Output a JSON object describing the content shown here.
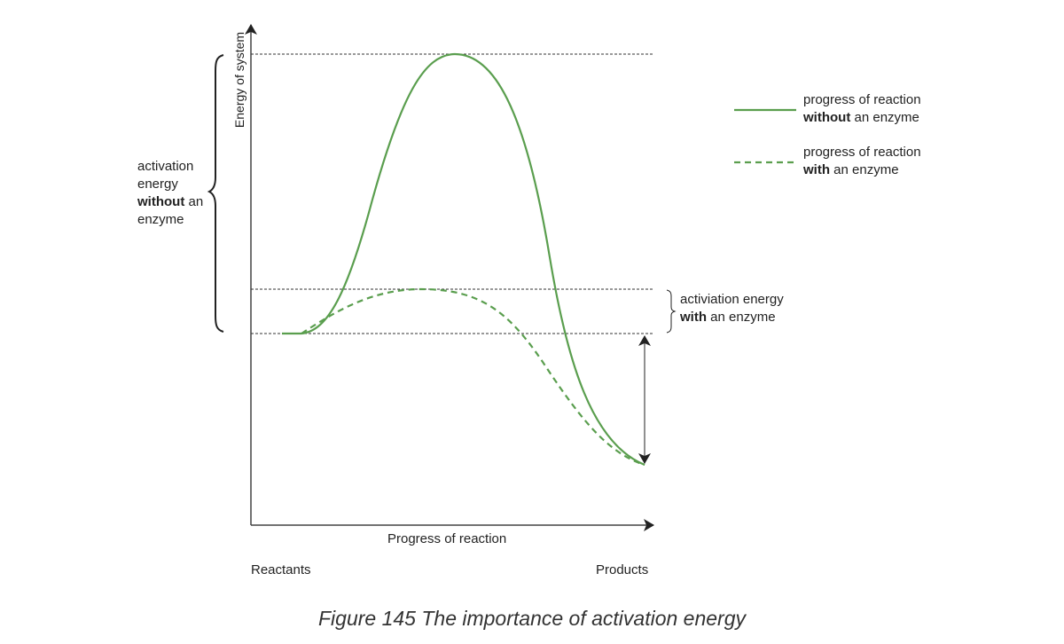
{
  "diagram": {
    "y_axis_label": "Energy of system",
    "x_axis_label": "Progress of reaction",
    "start_label": "Reactants",
    "end_label": "Products",
    "left_annotation": {
      "line1": "activation",
      "line2": "energy",
      "line3_bold": "without",
      "line3_rest": " an",
      "line4": "enzyme"
    },
    "right_annotation": {
      "line1": "activiation energy",
      "line2_bold": "with",
      "line2_rest": " an enzyme"
    },
    "legend": [
      {
        "style": "solid",
        "line1": "progress of reaction",
        "line2_bold": "without",
        "line2_rest": " an enzyme"
      },
      {
        "style": "dashed",
        "line1": "progress of reaction",
        "line2_bold": "with",
        "line2_rest": " an enzyme"
      }
    ],
    "curve_color": "#5a9e4e"
  },
  "caption": "Figure 145 The importance of activation energy"
}
